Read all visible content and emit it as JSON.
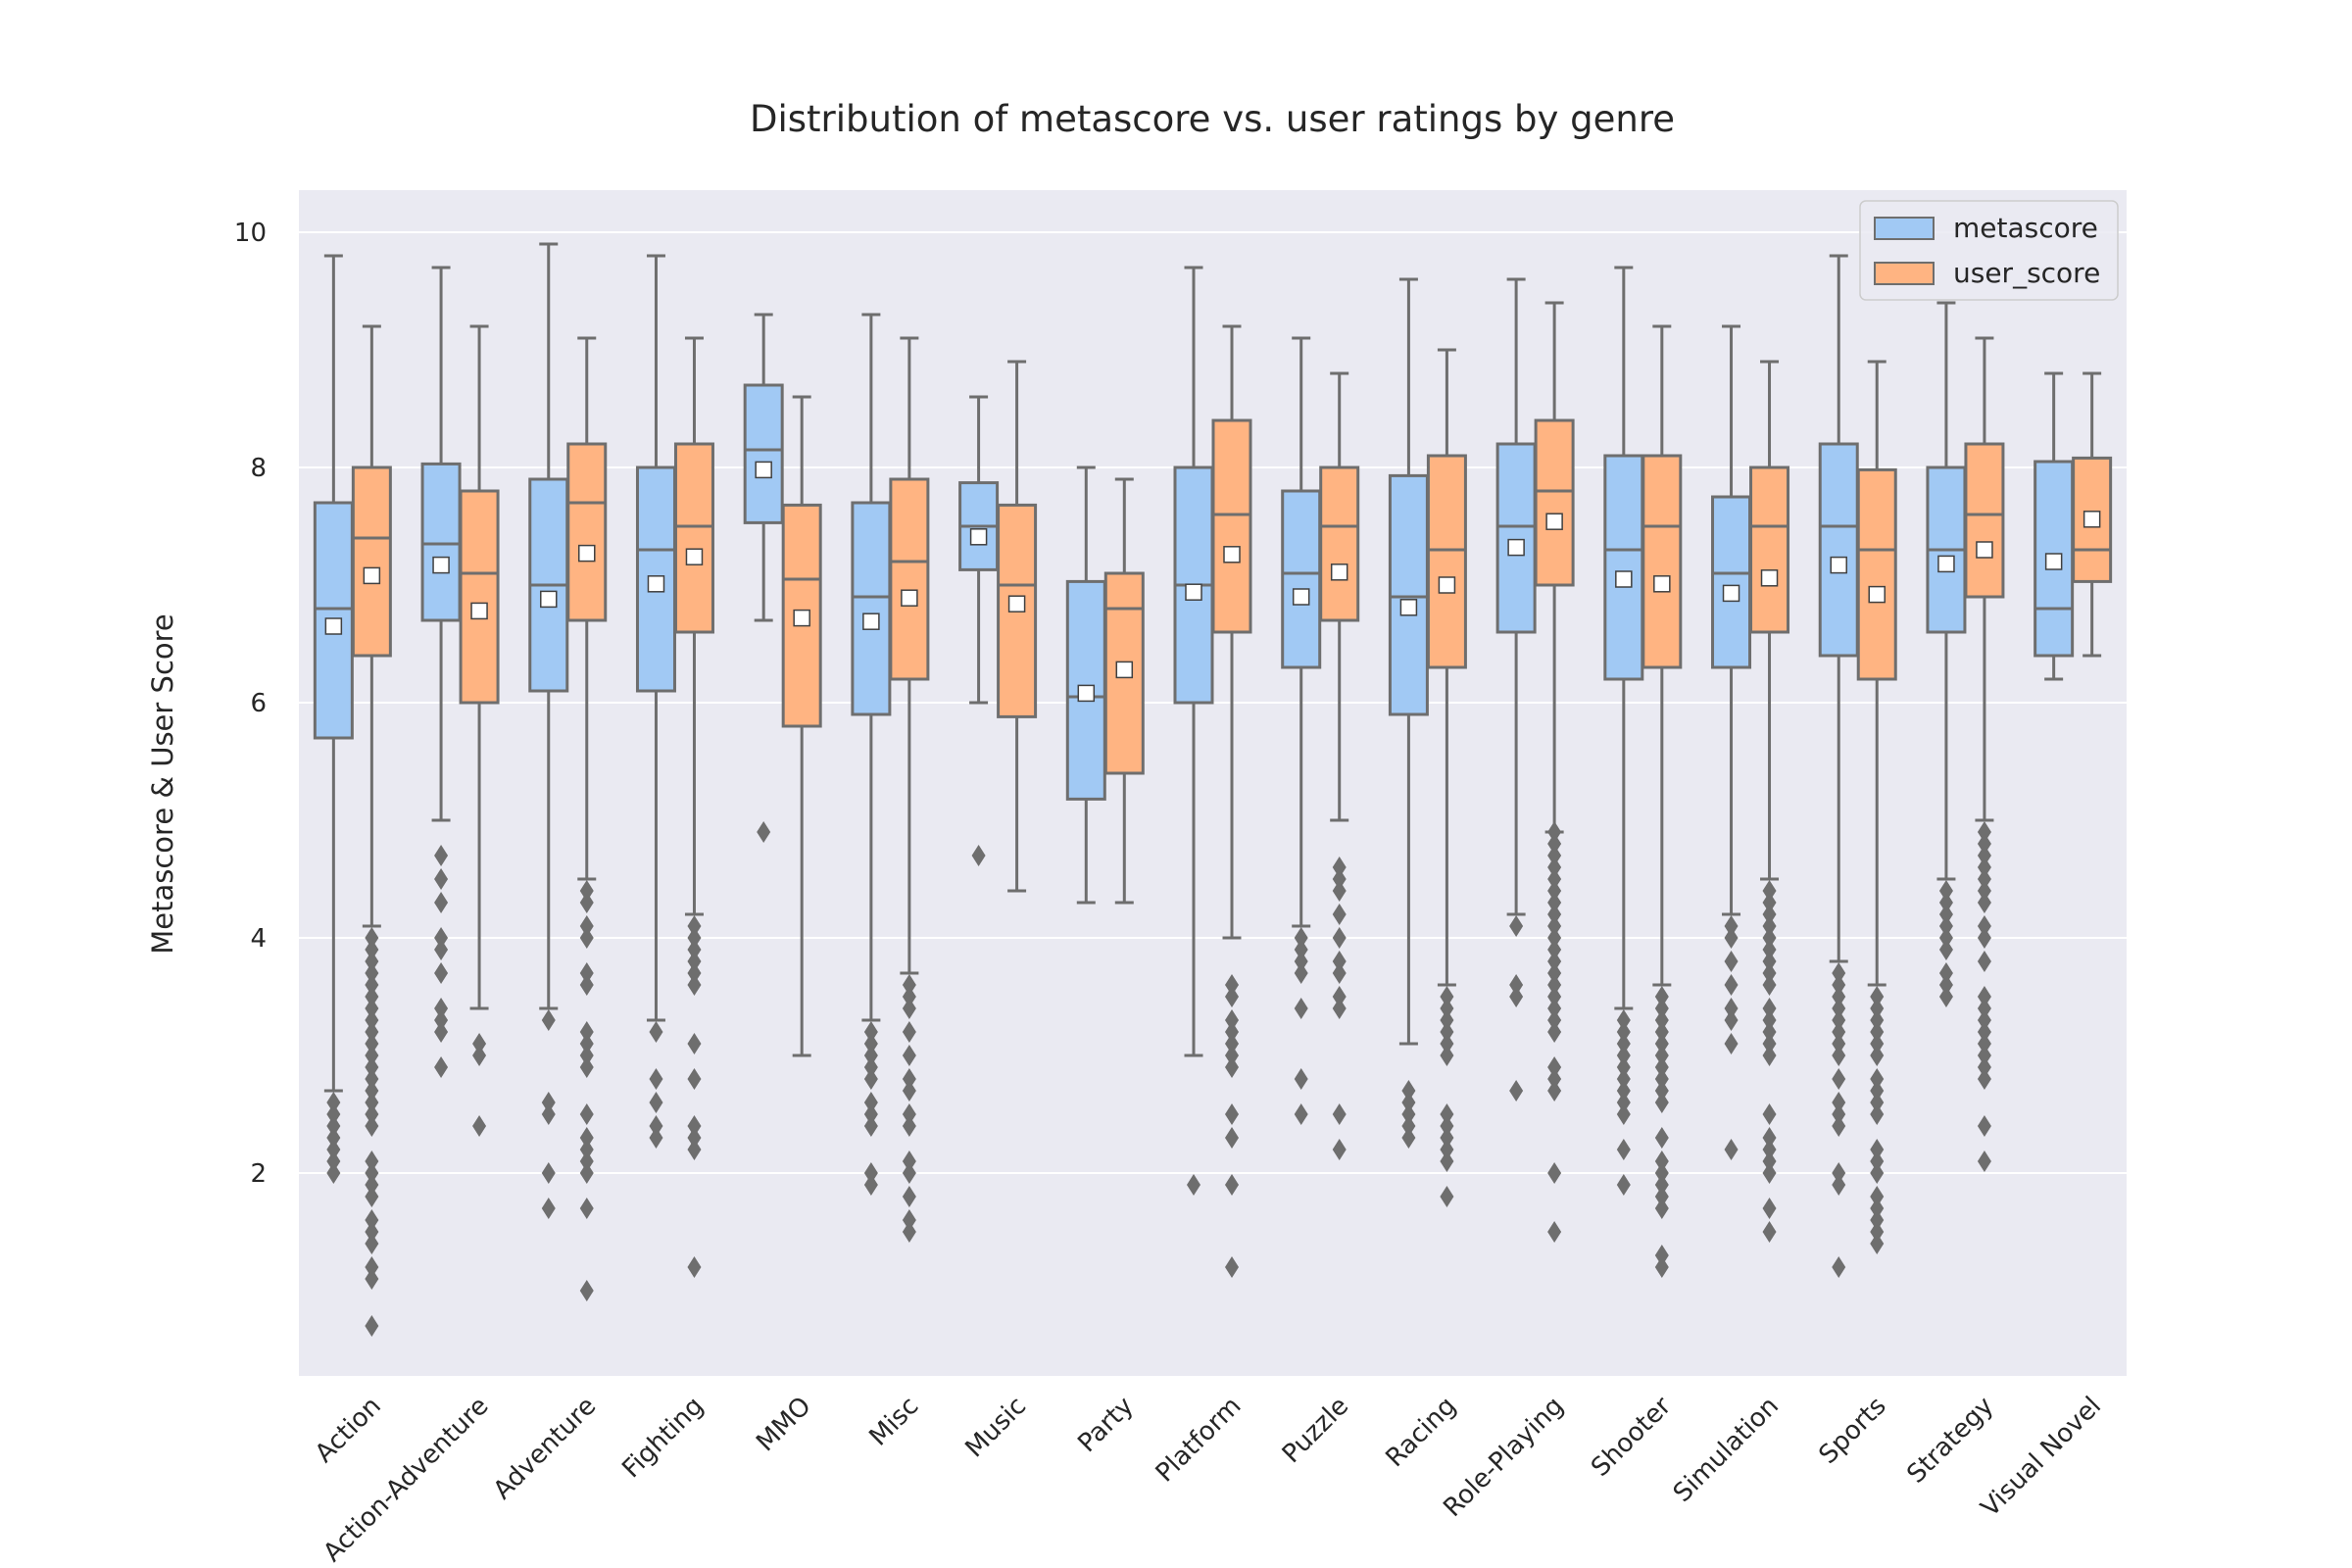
{
  "chart_data": {
    "type": "box",
    "title": "Distribution of metascore vs. user ratings by genre",
    "xlabel": "",
    "ylabel": "Metascore & User Score",
    "ylim": [
      0.3,
      10.35
    ],
    "yticks": [
      2,
      4,
      6,
      8,
      10
    ],
    "grid": true,
    "legend_position": "top-right",
    "categories": [
      "Action",
      "Action-Adventure",
      "Adventure",
      "Fighting",
      "MMO",
      "Misc",
      "Music",
      "Party",
      "Platform",
      "Puzzle",
      "Racing",
      "Role-Playing",
      "Shooter",
      "Simulation",
      "Sports",
      "Strategy",
      "Visual Novel"
    ],
    "series": [
      {
        "name": "metascore",
        "color": "#a1c9f4",
        "boxes": [
          {
            "whislo": 2.7,
            "q1": 5.7,
            "med": 6.8,
            "q3": 7.7,
            "whishi": 9.8,
            "mean": 6.65,
            "fliers": [
              2.0,
              2.1,
              2.2,
              2.3,
              2.4,
              2.5,
              2.6
            ]
          },
          {
            "whislo": 5.0,
            "q1": 6.7,
            "med": 7.35,
            "q3": 8.03,
            "whishi": 9.7,
            "mean": 7.17,
            "fliers": [
              2.9,
              3.2,
              3.3,
              3.4,
              3.7,
              3.9,
              4.0,
              4.3,
              4.5,
              4.7
            ]
          },
          {
            "whislo": 3.4,
            "q1": 6.1,
            "med": 7.0,
            "q3": 7.9,
            "whishi": 9.9,
            "mean": 6.88,
            "fliers": [
              1.7,
              2.0,
              2.5,
              2.6,
              3.3
            ]
          },
          {
            "whislo": 3.3,
            "q1": 6.1,
            "med": 7.3,
            "q3": 8.0,
            "whishi": 9.8,
            "mean": 7.01,
            "fliers": [
              2.3,
              2.4,
              2.6,
              2.8,
              3.2
            ]
          },
          {
            "whislo": 6.7,
            "q1": 7.53,
            "med": 8.15,
            "q3": 8.7,
            "whishi": 9.3,
            "mean": 7.98,
            "fliers": [
              4.9
            ]
          },
          {
            "whislo": 3.3,
            "q1": 5.9,
            "med": 6.9,
            "q3": 7.7,
            "whishi": 9.3,
            "mean": 6.69,
            "fliers": [
              1.9,
              2.0,
              2.4,
              2.5,
              2.6,
              2.8,
              2.9,
              3.0,
              3.1,
              3.2
            ]
          },
          {
            "whislo": 6.0,
            "q1": 7.13,
            "med": 7.5,
            "q3": 7.87,
            "whishi": 8.6,
            "mean": 7.41,
            "fliers": [
              4.7
            ]
          },
          {
            "whislo": 4.3,
            "q1": 5.18,
            "med": 6.05,
            "q3": 7.03,
            "whishi": 8.0,
            "mean": 6.08,
            "fliers": []
          },
          {
            "whislo": 3.0,
            "q1": 6.0,
            "med": 7.0,
            "q3": 8.0,
            "whishi": 9.7,
            "mean": 6.94,
            "fliers": [
              1.9
            ]
          },
          {
            "whislo": 4.1,
            "q1": 6.3,
            "med": 7.1,
            "q3": 7.8,
            "whishi": 9.1,
            "mean": 6.9,
            "fliers": [
              2.5,
              2.8,
              3.4,
              3.7,
              3.8,
              3.9,
              4.0
            ]
          },
          {
            "whislo": 3.1,
            "q1": 5.9,
            "med": 6.9,
            "q3": 7.93,
            "whishi": 9.6,
            "mean": 6.81,
            "fliers": [
              2.3,
              2.4,
              2.5,
              2.6,
              2.7
            ]
          },
          {
            "whislo": 4.2,
            "q1": 6.6,
            "med": 7.5,
            "q3": 8.2,
            "whishi": 9.6,
            "mean": 7.32,
            "fliers": [
              2.7,
              3.5,
              3.6,
              4.1
            ]
          },
          {
            "whislo": 3.4,
            "q1": 6.2,
            "med": 7.3,
            "q3": 8.1,
            "whishi": 9.7,
            "mean": 7.05,
            "fliers": [
              1.9,
              2.2,
              2.5,
              2.6,
              2.7,
              2.8,
              2.9,
              3.0,
              3.1,
              3.2,
              3.3
            ]
          },
          {
            "whislo": 4.2,
            "q1": 6.3,
            "med": 7.1,
            "q3": 7.75,
            "whishi": 9.2,
            "mean": 6.93,
            "fliers": [
              2.2,
              3.1,
              3.3,
              3.4,
              3.6,
              3.8,
              4.0,
              4.1
            ]
          },
          {
            "whislo": 3.8,
            "q1": 6.4,
            "med": 7.5,
            "q3": 8.2,
            "whishi": 9.8,
            "mean": 7.17,
            "fliers": [
              1.2,
              1.9,
              2.0,
              2.4,
              2.5,
              2.6,
              2.8,
              3.0,
              3.1,
              3.2,
              3.3,
              3.4,
              3.5,
              3.6,
              3.7
            ]
          },
          {
            "whislo": 4.5,
            "q1": 6.6,
            "med": 7.3,
            "q3": 8.0,
            "whishi": 9.4,
            "mean": 7.18,
            "fliers": [
              3.5,
              3.6,
              3.7,
              3.9,
              4.0,
              4.1,
              4.2,
              4.3,
              4.4
            ]
          },
          {
            "whislo": 6.2,
            "q1": 6.4,
            "med": 6.8,
            "q3": 8.05,
            "whishi": 8.8,
            "mean": 7.2,
            "fliers": []
          }
        ]
      },
      {
        "name": "user_score",
        "color": "#ffb482",
        "boxes": [
          {
            "whislo": 4.1,
            "q1": 6.4,
            "med": 7.4,
            "q3": 8.0,
            "whishi": 9.2,
            "mean": 7.08,
            "fliers": [
              0.7,
              1.1,
              1.2,
              1.4,
              1.5,
              1.6,
              1.8,
              1.9,
              2.0,
              2.1,
              2.4,
              2.5,
              2.6,
              2.7,
              2.8,
              2.9,
              3.0,
              3.1,
              3.2,
              3.3,
              3.4,
              3.5,
              3.6,
              3.7,
              3.8,
              3.9,
              4.0
            ]
          },
          {
            "whislo": 3.4,
            "q1": 6.0,
            "med": 7.1,
            "q3": 7.8,
            "whishi": 9.2,
            "mean": 6.78,
            "fliers": [
              2.4,
              3.0,
              3.1
            ]
          },
          {
            "whislo": 4.5,
            "q1": 6.7,
            "med": 7.7,
            "q3": 8.2,
            "whishi": 9.1,
            "mean": 7.27,
            "fliers": [
              1.0,
              1.7,
              2.0,
              2.1,
              2.2,
              2.3,
              2.5,
              2.9,
              3.0,
              3.1,
              3.2,
              3.6,
              3.7,
              4.0,
              4.1,
              4.3,
              4.4
            ]
          },
          {
            "whislo": 4.2,
            "q1": 6.6,
            "med": 7.5,
            "q3": 8.2,
            "whishi": 9.1,
            "mean": 7.24,
            "fliers": [
              1.2,
              2.2,
              2.3,
              2.4,
              2.8,
              3.1,
              3.6,
              3.7,
              3.8,
              3.9,
              4.0,
              4.1
            ]
          },
          {
            "whislo": 3.0,
            "q1": 5.8,
            "med": 7.05,
            "q3": 7.68,
            "whishi": 8.6,
            "mean": 6.72,
            "fliers": []
          },
          {
            "whislo": 3.7,
            "q1": 6.2,
            "med": 7.2,
            "q3": 7.9,
            "whishi": 9.1,
            "mean": 6.89,
            "fliers": [
              1.5,
              1.6,
              1.8,
              2.0,
              2.1,
              2.4,
              2.5,
              2.7,
              2.8,
              3.0,
              3.2,
              3.4,
              3.5,
              3.6
            ]
          },
          {
            "whislo": 4.4,
            "q1": 5.88,
            "med": 7.0,
            "q3": 7.68,
            "whishi": 8.9,
            "mean": 6.84,
            "fliers": []
          },
          {
            "whislo": 4.3,
            "q1": 5.4,
            "med": 6.8,
            "q3": 7.1,
            "whishi": 7.9,
            "mean": 6.28,
            "fliers": []
          },
          {
            "whislo": 4.0,
            "q1": 6.6,
            "med": 7.6,
            "q3": 8.4,
            "whishi": 9.2,
            "mean": 7.26,
            "fliers": [
              1.2,
              1.9,
              2.3,
              2.5,
              2.9,
              3.0,
              3.1,
              3.2,
              3.3,
              3.5,
              3.6
            ]
          },
          {
            "whislo": 5.0,
            "q1": 6.7,
            "med": 7.5,
            "q3": 8.0,
            "whishi": 8.8,
            "mean": 7.11,
            "fliers": [
              2.2,
              2.5,
              3.4,
              3.5,
              3.7,
              3.8,
              4.0,
              4.2,
              4.4,
              4.5,
              4.6
            ]
          },
          {
            "whislo": 3.6,
            "q1": 6.3,
            "med": 7.3,
            "q3": 8.1,
            "whishi": 9.0,
            "mean": 7.0,
            "fliers": [
              1.8,
              2.1,
              2.2,
              2.3,
              2.4,
              2.5,
              3.0,
              3.1,
              3.2,
              3.3,
              3.4,
              3.5
            ]
          },
          {
            "whislo": 4.9,
            "q1": 7.0,
            "med": 7.8,
            "q3": 8.4,
            "whishi": 9.4,
            "mean": 7.54,
            "fliers": [
              1.5,
              2.0,
              2.7,
              2.8,
              2.9,
              3.2,
              3.3,
              3.4,
              3.5,
              3.6,
              3.7,
              3.8,
              3.9,
              4.0,
              4.1,
              4.2,
              4.3,
              4.4,
              4.5,
              4.6,
              4.7,
              4.8,
              4.9
            ]
          },
          {
            "whislo": 3.6,
            "q1": 6.3,
            "med": 7.5,
            "q3": 8.1,
            "whishi": 9.2,
            "mean": 7.01,
            "fliers": [
              1.2,
              1.3,
              1.7,
              1.8,
              1.9,
              2.0,
              2.1,
              2.3,
              2.6,
              2.7,
              2.8,
              2.9,
              3.0,
              3.1,
              3.2,
              3.3,
              3.4,
              3.5
            ]
          },
          {
            "whislo": 4.5,
            "q1": 6.6,
            "med": 7.5,
            "q3": 8.0,
            "whishi": 8.9,
            "mean": 7.06,
            "fliers": [
              1.5,
              1.7,
              2.0,
              2.1,
              2.2,
              2.3,
              2.5,
              3.0,
              3.1,
              3.2,
              3.3,
              3.4,
              3.6,
              3.7,
              3.8,
              3.9,
              4.0,
              4.1,
              4.2,
              4.3,
              4.4
            ]
          },
          {
            "whislo": 3.6,
            "q1": 6.2,
            "med": 7.3,
            "q3": 7.98,
            "whishi": 8.9,
            "mean": 6.92,
            "fliers": [
              1.4,
              1.5,
              1.6,
              1.7,
              1.8,
              2.0,
              2.1,
              2.2,
              2.5,
              2.6,
              2.7,
              2.8,
              3.0,
              3.1,
              3.2,
              3.3,
              3.4,
              3.5
            ]
          },
          {
            "whislo": 5.0,
            "q1": 6.9,
            "med": 7.6,
            "q3": 8.2,
            "whishi": 9.1,
            "mean": 7.3,
            "fliers": [
              2.1,
              2.4,
              2.8,
              2.9,
              3.0,
              3.1,
              3.2,
              3.3,
              3.4,
              3.5,
              3.8,
              4.0,
              4.1,
              4.3,
              4.4,
              4.5,
              4.6,
              4.7,
              4.8,
              4.9
            ]
          },
          {
            "whislo": 6.4,
            "q1": 7.03,
            "med": 7.3,
            "q3": 8.08,
            "whishi": 8.8,
            "mean": 7.56,
            "fliers": []
          }
        ]
      }
    ]
  }
}
